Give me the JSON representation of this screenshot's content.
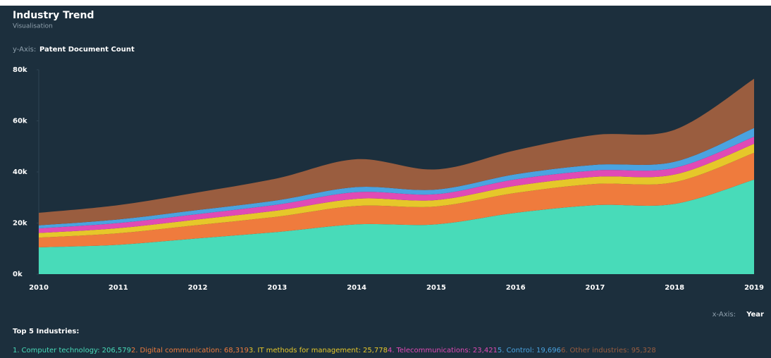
{
  "chart_data": {
    "type": "stacked-area",
    "title": "Industry Trend",
    "subtitle": "Visualisation",
    "y_axis_prefix": "y-Axis:",
    "y_axis_label": "Patent Document Count",
    "x_axis_prefix": "x-Axis:",
    "x_axis_label": "Year",
    "legend_title": "Top 5 Industries:",
    "categories": [
      "2010",
      "2011",
      "2012",
      "2013",
      "2014",
      "2015",
      "2016",
      "2017",
      "2018",
      "2019"
    ],
    "ylim": [
      0,
      80000
    ],
    "yticks": [
      {
        "value": 0,
        "label": "0k"
      },
      {
        "value": 20000,
        "label": "20k"
      },
      {
        "value": 40000,
        "label": "40k"
      },
      {
        "value": 60000,
        "label": "60k"
      },
      {
        "value": 80000,
        "label": "80k"
      }
    ],
    "series": [
      {
        "rank": "1.",
        "name": "Computer technology",
        "color": "#48dbb9",
        "total": 206579,
        "total_label": "206,579",
        "values": [
          10500,
          11500,
          14000,
          16500,
          19500,
          19500,
          24000,
          27000,
          27500,
          37000
        ]
      },
      {
        "rank": "2.",
        "name": "Digital communication",
        "color": "#ef7b3d",
        "total": 68319,
        "total_label": "68,319",
        "values": [
          3800,
          4500,
          5200,
          6000,
          7200,
          7000,
          7800,
          8300,
          8500,
          10500
        ]
      },
      {
        "rank": "3.",
        "name": "IT methods for management",
        "color": "#e6c72a",
        "total": 25778,
        "total_label": "25,778",
        "values": [
          1800,
          2000,
          2200,
          2400,
          2800,
          2500,
          2800,
          2800,
          3000,
          3500
        ]
      },
      {
        "rank": "4.",
        "name": "Telecommunications",
        "color": "#e04ab5",
        "total": 23421,
        "total_label": "23,421",
        "values": [
          1800,
          2000,
          2100,
          2300,
          2600,
          2300,
          2500,
          2500,
          2600,
          2800
        ]
      },
      {
        "rank": "5.",
        "name": "Control",
        "color": "#4aa3e0",
        "total": 19696,
        "total_label": "19,696",
        "values": [
          1200,
          1400,
          1600,
          1700,
          2000,
          1800,
          2000,
          2200,
          2400,
          3400
        ]
      },
      {
        "rank": "6.",
        "name": "Other industries",
        "color": "#9a5d3f",
        "total": 95328,
        "total_label": "95,328",
        "values": [
          4900,
          5600,
          6900,
          8600,
          10900,
          7900,
          9400,
          11700,
          12500,
          19300
        ]
      }
    ]
  }
}
